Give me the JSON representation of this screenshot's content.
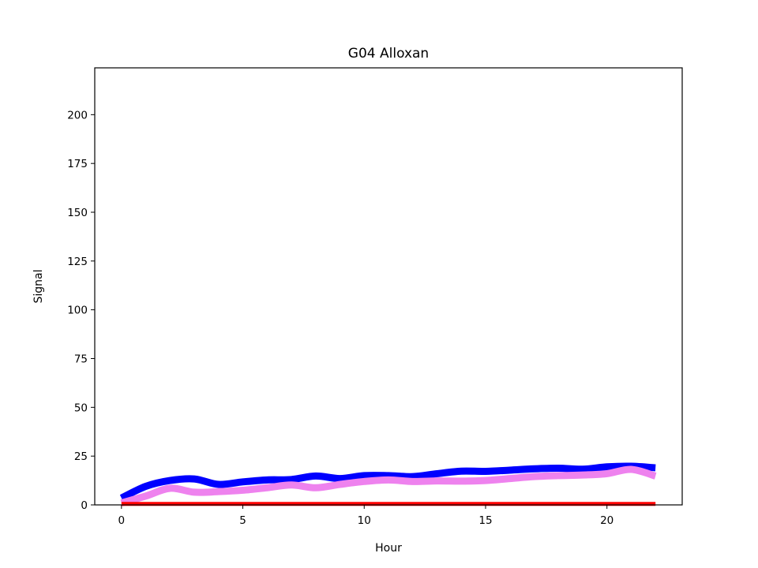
{
  "chart_data": {
    "type": "line",
    "title": "G04 Alloxan",
    "xlabel": "Hour",
    "ylabel": "Signal",
    "xlim": [
      -1.1,
      23.1
    ],
    "ylim": [
      0,
      224
    ],
    "xticks": [
      0,
      5,
      10,
      15,
      20
    ],
    "yticks": [
      0,
      25,
      50,
      75,
      100,
      125,
      150,
      175,
      200
    ],
    "grid": false,
    "x": [
      0,
      1,
      2,
      3,
      4,
      5,
      6,
      7,
      8,
      9,
      10,
      11,
      12,
      13,
      14,
      15,
      16,
      17,
      18,
      19,
      20,
      21,
      22
    ],
    "series": [
      {
        "color": "#0000ff",
        "values": [
          3.5,
          9.5,
          12.5,
          13.3,
          10.5,
          11.8,
          12.8,
          13.0,
          14.8,
          13.5,
          15.0,
          15.0,
          14.5,
          16.0,
          17.3,
          17.2,
          17.8,
          18.5,
          18.8,
          18.3,
          19.5,
          19.8,
          19.0
        ]
      },
      {
        "color": "#ee82ee",
        "values": [
          1.0,
          4.5,
          8.5,
          6.5,
          6.8,
          7.5,
          8.8,
          10.2,
          8.8,
          10.5,
          12.0,
          12.8,
          12.0,
          12.3,
          12.2,
          12.5,
          13.5,
          14.5,
          15.0,
          15.3,
          16.0,
          18.2,
          14.8
        ]
      },
      {
        "color": "#ff0000",
        "values": [
          0.5,
          0.5,
          0.5,
          0.5,
          0.5,
          0.5,
          0.5,
          0.5,
          0.5,
          0.5,
          0.5,
          0.5,
          0.5,
          0.5,
          0.5,
          0.5,
          0.5,
          0.5,
          0.5,
          0.5,
          0.5,
          0.5,
          0.5
        ]
      }
    ]
  }
}
